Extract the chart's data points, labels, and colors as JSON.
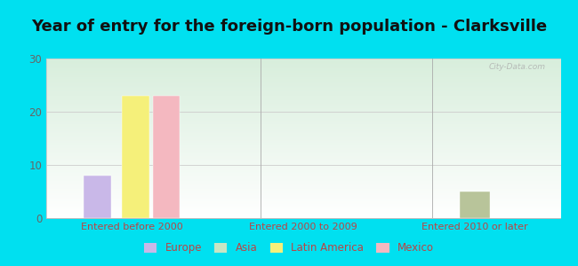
{
  "title": "Year of entry for the foreign-born population - Clarksville",
  "categories": [
    "Entered before 2000",
    "Entered 2000 to 2009",
    "Entered 2010 or later"
  ],
  "series": {
    "Europe": [
      8,
      0,
      0
    ],
    "Asia": [
      0,
      0,
      0
    ],
    "Latin America": [
      23,
      0,
      0
    ],
    "Mexico": [
      23,
      0,
      0
    ],
    "OtherLater": [
      0,
      0,
      5
    ]
  },
  "bar_colors": {
    "Europe": "#c9b8e8",
    "Asia": "#c8e6c4",
    "Latin America": "#f5f07a",
    "Mexico": "#f4b8c0",
    "OtherLater": "#b8c49a"
  },
  "legend_colors": {
    "Europe": "#c9b8e8",
    "Asia": "#c8e6c4",
    "Latin America": "#f5f07a",
    "Mexico": "#f4b8c0"
  },
  "ylim": [
    0,
    30
  ],
  "yticks": [
    0,
    10,
    20,
    30
  ],
  "background_outer": "#00e0f0",
  "title_fontsize": 13,
  "watermark": "City-Data.com",
  "group_positions": [
    0,
    1,
    2
  ]
}
